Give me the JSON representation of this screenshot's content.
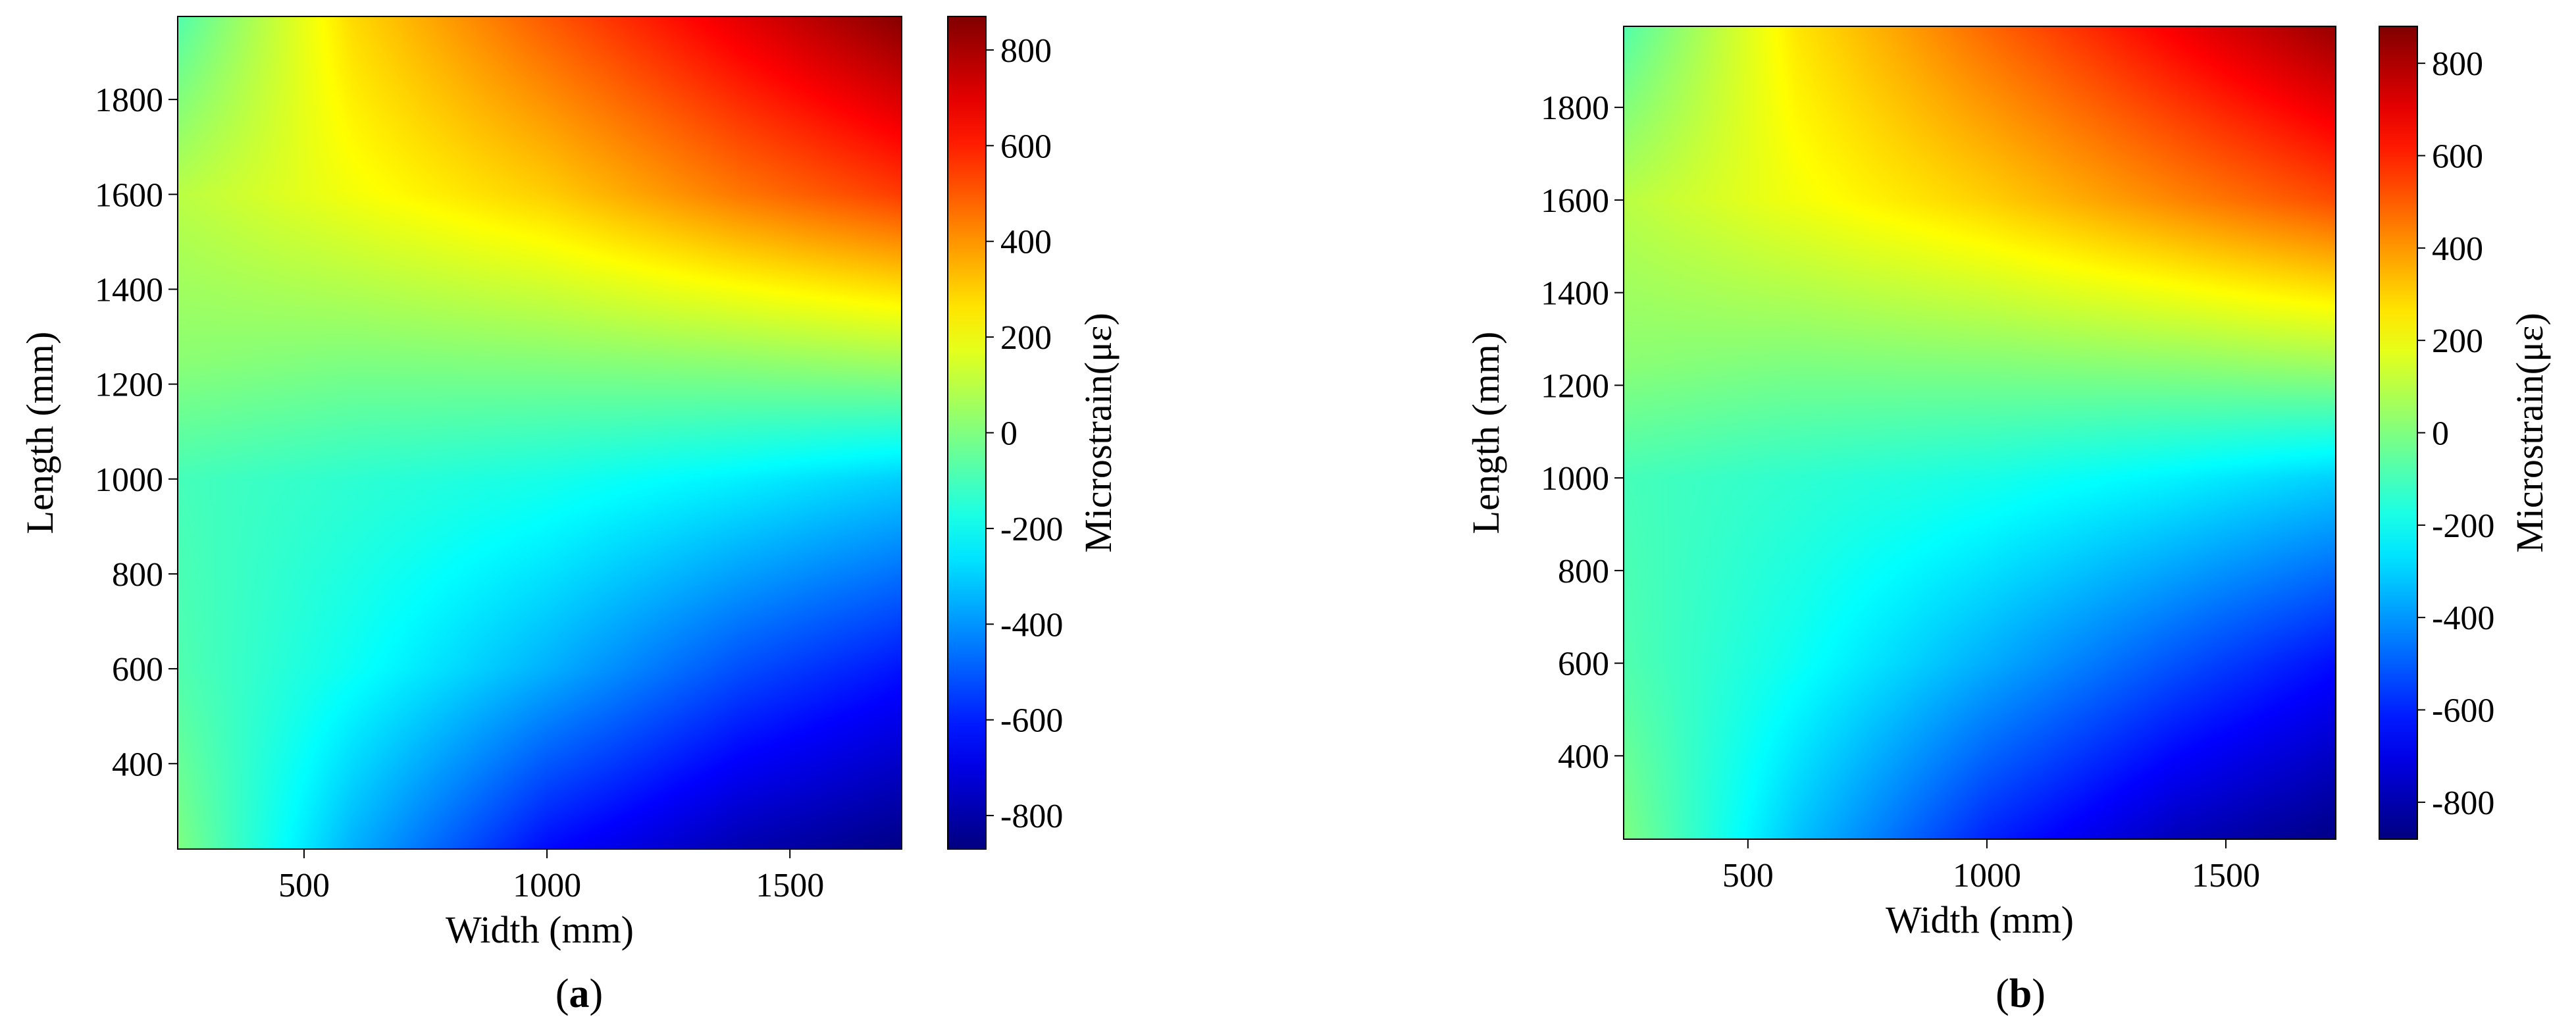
{
  "chart_data": [
    {
      "type": "heatmap",
      "panel_label": "a",
      "xlabel": "Width (mm)",
      "ylabel": "Length (mm)",
      "colorbar_label": "Microstrain(με)",
      "xlim": [
        240,
        1730
      ],
      "ylim": [
        220,
        1975
      ],
      "x_ticks": [
        500,
        1000,
        1500
      ],
      "y_ticks": [
        400,
        600,
        800,
        1000,
        1200,
        1400,
        1600,
        1800
      ],
      "colorbar_range": [
        -870,
        870
      ],
      "colorbar_ticks": [
        -800,
        -600,
        -400,
        -200,
        0,
        200,
        400,
        600,
        800
      ],
      "colormap": "jet",
      "x_grid": [
        240,
        600,
        1000,
        1400,
        1730
      ],
      "y_grid": [
        220,
        600,
        1000,
        1250,
        1600,
        1975
      ],
      "z": [
        [
          0,
          -350,
          -640,
          -790,
          -860
        ],
        [
          -80,
          -200,
          -350,
          -520,
          -620
        ],
        [
          -100,
          -140,
          -180,
          -240,
          -300
        ],
        [
          20,
          0,
          10,
          30,
          60
        ],
        [
          100,
          200,
          300,
          450,
          550
        ],
        [
          -80,
          280,
          500,
          700,
          860
        ]
      ]
    },
    {
      "type": "heatmap",
      "panel_label": "b",
      "xlabel": "Width (mm)",
      "ylabel": "Length (mm)",
      "colorbar_label": "Microstrain(με)",
      "xlim": [
        240,
        1730
      ],
      "ylim": [
        220,
        1975
      ],
      "x_ticks": [
        500,
        1000,
        1500
      ],
      "y_ticks": [
        400,
        600,
        800,
        1000,
        1200,
        1400,
        1600,
        1800
      ],
      "colorbar_range": [
        -880,
        880
      ],
      "colorbar_ticks": [
        -800,
        -600,
        -400,
        -200,
        0,
        200,
        400,
        600,
        800
      ],
      "colormap": "jet",
      "x_grid": [
        240,
        600,
        1000,
        1400,
        1730
      ],
      "y_grid": [
        220,
        600,
        1000,
        1250,
        1600,
        1975
      ],
      "z": [
        [
          0,
          -320,
          -600,
          -780,
          -870
        ],
        [
          -80,
          -200,
          -360,
          -520,
          -640
        ],
        [
          -100,
          -140,
          -180,
          -240,
          -300
        ],
        [
          20,
          0,
          10,
          30,
          60
        ],
        [
          100,
          200,
          300,
          430,
          530
        ],
        [
          -80,
          260,
          480,
          680,
          840
        ]
      ]
    }
  ]
}
